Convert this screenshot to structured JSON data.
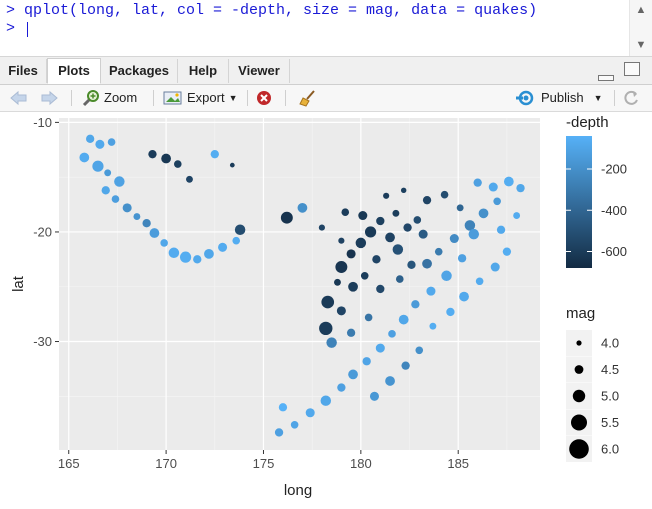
{
  "console": {
    "command_line": "> qplot(long, lat, col = -depth, size = mag, data = quakes)",
    "prompt_line": "> "
  },
  "tabs": [
    {
      "label": "Files",
      "active": false
    },
    {
      "label": "Plots",
      "active": true
    },
    {
      "label": "Packages",
      "active": false
    },
    {
      "label": "Help",
      "active": false
    },
    {
      "label": "Viewer",
      "active": false
    }
  ],
  "toolbar": {
    "zoom_label": "Zoom",
    "export_label": "Export",
    "publish_label": "Publish"
  },
  "chart_data": {
    "type": "scatter",
    "xlabel": "long",
    "ylabel": "lat",
    "xlim": [
      164.5,
      189.2
    ],
    "ylim": [
      -39.9,
      -9.6
    ],
    "xticks": [
      165,
      170,
      175,
      180,
      185
    ],
    "yticks": [
      -10,
      -20,
      -30
    ],
    "grid": true,
    "color_legend": {
      "title": "-depth",
      "breaks": [
        -200,
        -400,
        -600
      ],
      "range": [
        -680,
        -40
      ],
      "low_color": "#132B43",
      "high_color": "#56B1F7"
    },
    "size_legend": {
      "title": "mag",
      "breaks": [
        4.0,
        4.5,
        5.0,
        5.5,
        6.0
      ]
    },
    "points": [
      {
        "x": 166.1,
        "y": -11.5,
        "depth": -90,
        "mag": 4.6
      },
      {
        "x": 166.6,
        "y": -12.0,
        "depth": -80,
        "mag": 4.7
      },
      {
        "x": 167.2,
        "y": -11.8,
        "depth": -120,
        "mag": 4.5
      },
      {
        "x": 165.8,
        "y": -13.2,
        "depth": -70,
        "mag": 4.8
      },
      {
        "x": 166.5,
        "y": -14.0,
        "depth": -100,
        "mag": 5.0
      },
      {
        "x": 167.0,
        "y": -14.6,
        "depth": -150,
        "mag": 4.4
      },
      {
        "x": 167.6,
        "y": -15.4,
        "depth": -110,
        "mag": 4.9
      },
      {
        "x": 166.9,
        "y": -16.2,
        "depth": -90,
        "mag": 4.6
      },
      {
        "x": 167.4,
        "y": -17.0,
        "depth": -130,
        "mag": 4.5
      },
      {
        "x": 168.0,
        "y": -17.8,
        "depth": -200,
        "mag": 4.7
      },
      {
        "x": 168.5,
        "y": -18.6,
        "depth": -180,
        "mag": 4.4
      },
      {
        "x": 169.0,
        "y": -19.2,
        "depth": -250,
        "mag": 4.6
      },
      {
        "x": 169.4,
        "y": -20.1,
        "depth": -140,
        "mag": 4.8
      },
      {
        "x": 169.9,
        "y": -21.0,
        "depth": -90,
        "mag": 4.5
      },
      {
        "x": 170.4,
        "y": -21.9,
        "depth": -70,
        "mag": 4.9
      },
      {
        "x": 171.0,
        "y": -22.3,
        "depth": -60,
        "mag": 5.0
      },
      {
        "x": 171.6,
        "y": -22.5,
        "depth": -80,
        "mag": 4.6
      },
      {
        "x": 172.2,
        "y": -22.0,
        "depth": -90,
        "mag": 4.8
      },
      {
        "x": 172.9,
        "y": -21.4,
        "depth": -70,
        "mag": 4.7
      },
      {
        "x": 173.6,
        "y": -20.8,
        "depth": -60,
        "mag": 4.5
      },
      {
        "x": 169.3,
        "y": -12.9,
        "depth": -600,
        "mag": 4.6
      },
      {
        "x": 170.0,
        "y": -13.3,
        "depth": -620,
        "mag": 4.8
      },
      {
        "x": 170.6,
        "y": -13.8,
        "depth": -580,
        "mag": 4.5
      },
      {
        "x": 171.2,
        "y": -15.2,
        "depth": -560,
        "mag": 4.4
      },
      {
        "x": 172.5,
        "y": -12.9,
        "depth": -60,
        "mag": 4.6
      },
      {
        "x": 173.4,
        "y": -13.9,
        "depth": -600,
        "mag": 4.1
      },
      {
        "x": 173.8,
        "y": -19.8,
        "depth": -520,
        "mag": 4.9
      },
      {
        "x": 177.0,
        "y": -17.8,
        "depth": -200,
        "mag": 4.8
      },
      {
        "x": 176.2,
        "y": -18.7,
        "depth": -640,
        "mag": 5.1
      },
      {
        "x": 178.0,
        "y": -19.6,
        "depth": -560,
        "mag": 4.3
      },
      {
        "x": 179.2,
        "y": -18.2,
        "depth": -600,
        "mag": 4.5
      },
      {
        "x": 180.1,
        "y": -18.5,
        "depth": -620,
        "mag": 4.7
      },
      {
        "x": 181.0,
        "y": -19.0,
        "depth": -580,
        "mag": 4.6
      },
      {
        "x": 181.8,
        "y": -18.3,
        "depth": -590,
        "mag": 4.4
      },
      {
        "x": 180.5,
        "y": -20.0,
        "depth": -610,
        "mag": 5.0
      },
      {
        "x": 181.5,
        "y": -20.5,
        "depth": -570,
        "mag": 4.8
      },
      {
        "x": 182.4,
        "y": -19.6,
        "depth": -550,
        "mag": 4.6
      },
      {
        "x": 180.0,
        "y": -21.0,
        "depth": -600,
        "mag": 4.9
      },
      {
        "x": 179.5,
        "y": -22.0,
        "depth": -640,
        "mag": 4.7
      },
      {
        "x": 180.8,
        "y": -22.5,
        "depth": -560,
        "mag": 4.6
      },
      {
        "x": 179.0,
        "y": -23.2,
        "depth": -630,
        "mag": 5.1
      },
      {
        "x": 180.2,
        "y": -24.0,
        "depth": -590,
        "mag": 4.5
      },
      {
        "x": 179.6,
        "y": -25.0,
        "depth": -600,
        "mag": 4.8
      },
      {
        "x": 178.8,
        "y": -24.6,
        "depth": -620,
        "mag": 4.4
      },
      {
        "x": 181.0,
        "y": -25.2,
        "depth": -540,
        "mag": 4.6
      },
      {
        "x": 178.3,
        "y": -26.4,
        "depth": -610,
        "mag": 5.2
      },
      {
        "x": 179.0,
        "y": -27.2,
        "depth": -560,
        "mag": 4.7
      },
      {
        "x": 178.2,
        "y": -28.8,
        "depth": -600,
        "mag": 5.3
      },
      {
        "x": 181.9,
        "y": -21.6,
        "depth": -500,
        "mag": 4.9
      },
      {
        "x": 182.6,
        "y": -23.0,
        "depth": -480,
        "mag": 4.6
      },
      {
        "x": 182.0,
        "y": -24.3,
        "depth": -420,
        "mag": 4.5
      },
      {
        "x": 181.3,
        "y": -16.7,
        "depth": -600,
        "mag": 4.3
      },
      {
        "x": 182.2,
        "y": -16.2,
        "depth": -580,
        "mag": 4.2
      },
      {
        "x": 183.4,
        "y": -17.1,
        "depth": -560,
        "mag": 4.6
      },
      {
        "x": 184.3,
        "y": -16.6,
        "depth": -520,
        "mag": 4.5
      },
      {
        "x": 185.1,
        "y": -17.8,
        "depth": -400,
        "mag": 4.4
      },
      {
        "x": 186.0,
        "y": -15.5,
        "depth": -120,
        "mag": 4.6
      },
      {
        "x": 186.8,
        "y": -15.9,
        "depth": -80,
        "mag": 4.7
      },
      {
        "x": 187.6,
        "y": -15.4,
        "depth": -60,
        "mag": 4.8
      },
      {
        "x": 188.2,
        "y": -16.0,
        "depth": -90,
        "mag": 4.6
      },
      {
        "x": 187.0,
        "y": -17.2,
        "depth": -150,
        "mag": 4.5
      },
      {
        "x": 186.3,
        "y": -18.3,
        "depth": -200,
        "mag": 4.8
      },
      {
        "x": 185.6,
        "y": -19.4,
        "depth": -260,
        "mag": 4.9
      },
      {
        "x": 184.8,
        "y": -20.6,
        "depth": -220,
        "mag": 4.7
      },
      {
        "x": 184.0,
        "y": -21.8,
        "depth": -300,
        "mag": 4.5
      },
      {
        "x": 183.4,
        "y": -22.9,
        "depth": -340,
        "mag": 4.8
      },
      {
        "x": 185.2,
        "y": -22.4,
        "depth": -120,
        "mag": 4.6
      },
      {
        "x": 184.4,
        "y": -24.0,
        "depth": -100,
        "mag": 4.9
      },
      {
        "x": 183.6,
        "y": -25.4,
        "depth": -80,
        "mag": 4.7
      },
      {
        "x": 182.8,
        "y": -26.6,
        "depth": -150,
        "mag": 4.6
      },
      {
        "x": 182.2,
        "y": -28.0,
        "depth": -90,
        "mag": 4.8
      },
      {
        "x": 181.6,
        "y": -29.3,
        "depth": -120,
        "mag": 4.5
      },
      {
        "x": 181.0,
        "y": -30.6,
        "depth": -80,
        "mag": 4.7
      },
      {
        "x": 180.3,
        "y": -31.8,
        "depth": -100,
        "mag": 4.6
      },
      {
        "x": 179.6,
        "y": -33.0,
        "depth": -150,
        "mag": 4.8
      },
      {
        "x": 179.0,
        "y": -34.2,
        "depth": -120,
        "mag": 4.6
      },
      {
        "x": 178.2,
        "y": -35.4,
        "depth": -90,
        "mag": 4.9
      },
      {
        "x": 177.4,
        "y": -36.5,
        "depth": -80,
        "mag": 4.7
      },
      {
        "x": 176.6,
        "y": -37.6,
        "depth": -100,
        "mag": 4.5
      },
      {
        "x": 175.8,
        "y": -38.3,
        "depth": -120,
        "mag": 4.6
      },
      {
        "x": 183.0,
        "y": -30.8,
        "depth": -200,
        "mag": 4.5
      },
      {
        "x": 182.3,
        "y": -32.2,
        "depth": -250,
        "mag": 4.6
      },
      {
        "x": 181.5,
        "y": -33.6,
        "depth": -180,
        "mag": 4.8
      },
      {
        "x": 180.7,
        "y": -35.0,
        "depth": -160,
        "mag": 4.7
      },
      {
        "x": 184.6,
        "y": -27.3,
        "depth": -60,
        "mag": 4.6
      },
      {
        "x": 185.3,
        "y": -25.9,
        "depth": -80,
        "mag": 4.8
      },
      {
        "x": 186.1,
        "y": -24.5,
        "depth": -70,
        "mag": 4.5
      },
      {
        "x": 186.9,
        "y": -23.2,
        "depth": -90,
        "mag": 4.7
      },
      {
        "x": 187.5,
        "y": -21.8,
        "depth": -60,
        "mag": 4.6
      },
      {
        "x": 188.0,
        "y": -18.5,
        "depth": -70,
        "mag": 4.4
      },
      {
        "x": 183.2,
        "y": -20.2,
        "depth": -450,
        "mag": 4.7
      },
      {
        "x": 182.9,
        "y": -18.9,
        "depth": -520,
        "mag": 4.5
      },
      {
        "x": 179.0,
        "y": -20.8,
        "depth": -570,
        "mag": 4.3
      },
      {
        "x": 176.0,
        "y": -36.0,
        "depth": -30,
        "mag": 4.6
      },
      {
        "x": 178.5,
        "y": -30.1,
        "depth": -260,
        "mag": 4.9
      },
      {
        "x": 179.5,
        "y": -29.2,
        "depth": -300,
        "mag": 4.6
      },
      {
        "x": 180.4,
        "y": -27.8,
        "depth": -330,
        "mag": 4.5
      },
      {
        "x": 183.7,
        "y": -28.6,
        "depth": -60,
        "mag": 4.4
      },
      {
        "x": 185.8,
        "y": -20.2,
        "depth": -140,
        "mag": 4.9
      },
      {
        "x": 187.2,
        "y": -19.8,
        "depth": -80,
        "mag": 4.6
      }
    ]
  }
}
